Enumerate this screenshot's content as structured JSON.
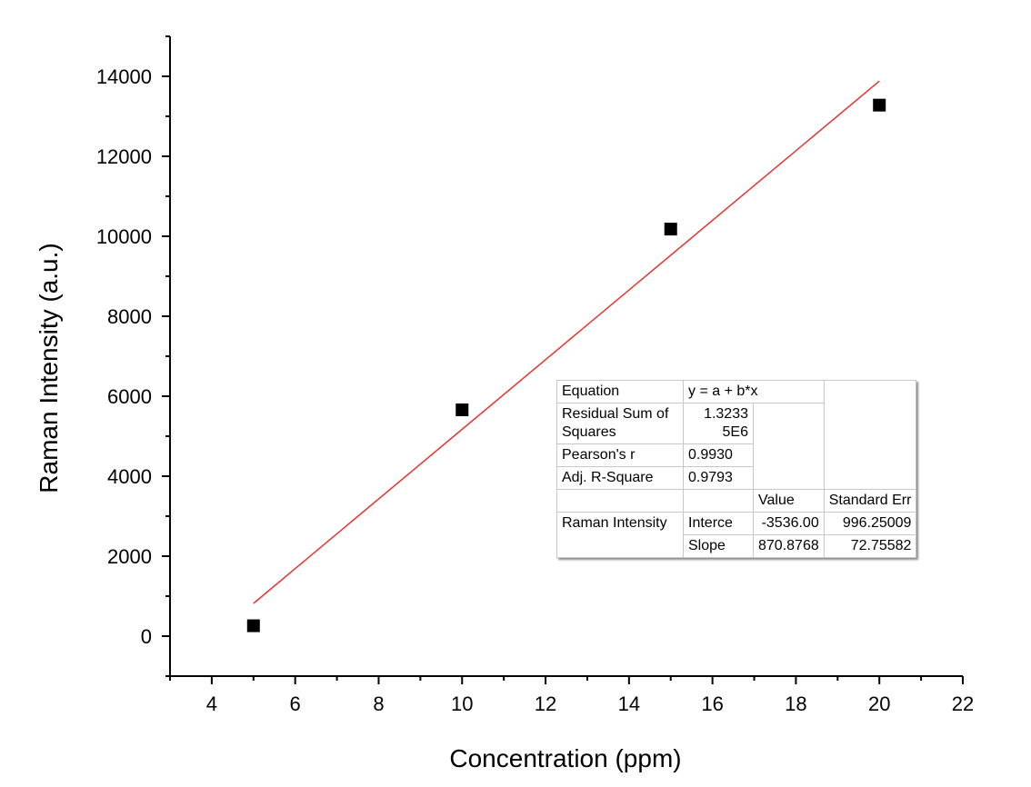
{
  "chart_data": {
    "type": "scatter",
    "xlabel": "Concentration (ppm)",
    "ylabel": "Raman Intensity (a.u.)",
    "xlim": [
      3,
      22
    ],
    "ylim": [
      -1000,
      15000
    ],
    "xticks": [
      "4",
      "6",
      "8",
      "10",
      "12",
      "14",
      "16",
      "18",
      "20",
      "22"
    ],
    "yticks": [
      "0",
      "2000",
      "4000",
      "6000",
      "8000",
      "10000",
      "12000",
      "14000"
    ],
    "points": [
      {
        "x": 5,
        "y": 260
      },
      {
        "x": 10,
        "y": 5660
      },
      {
        "x": 15,
        "y": 10180
      },
      {
        "x": 20,
        "y": 13280
      }
    ],
    "fit_line": {
      "intercept": -3536.0,
      "slope": 870.8768,
      "x_range": [
        5,
        20
      ],
      "color": "#e8322e"
    },
    "marker_color": "#000000"
  },
  "fit_table": {
    "equation_label": "Equation",
    "equation_value": "y = a + b*x",
    "rss_label": "Residual Sum of Squares",
    "rss_value": "1.3233 5E6",
    "pearson_label": "Pearson's r",
    "pearson_value": "0.9930",
    "adjr2_label": "Adj. R-Square",
    "adjr2_value": "0.9793",
    "col_value": "Value",
    "col_stderr": "Standard Err",
    "series_label": "Raman Intensity",
    "intercept_label": "Interce",
    "intercept_value": "-3536.00",
    "intercept_err": "996.25009",
    "slope_label": "Slope",
    "slope_value": "870.8768",
    "slope_err": "72.75582"
  }
}
